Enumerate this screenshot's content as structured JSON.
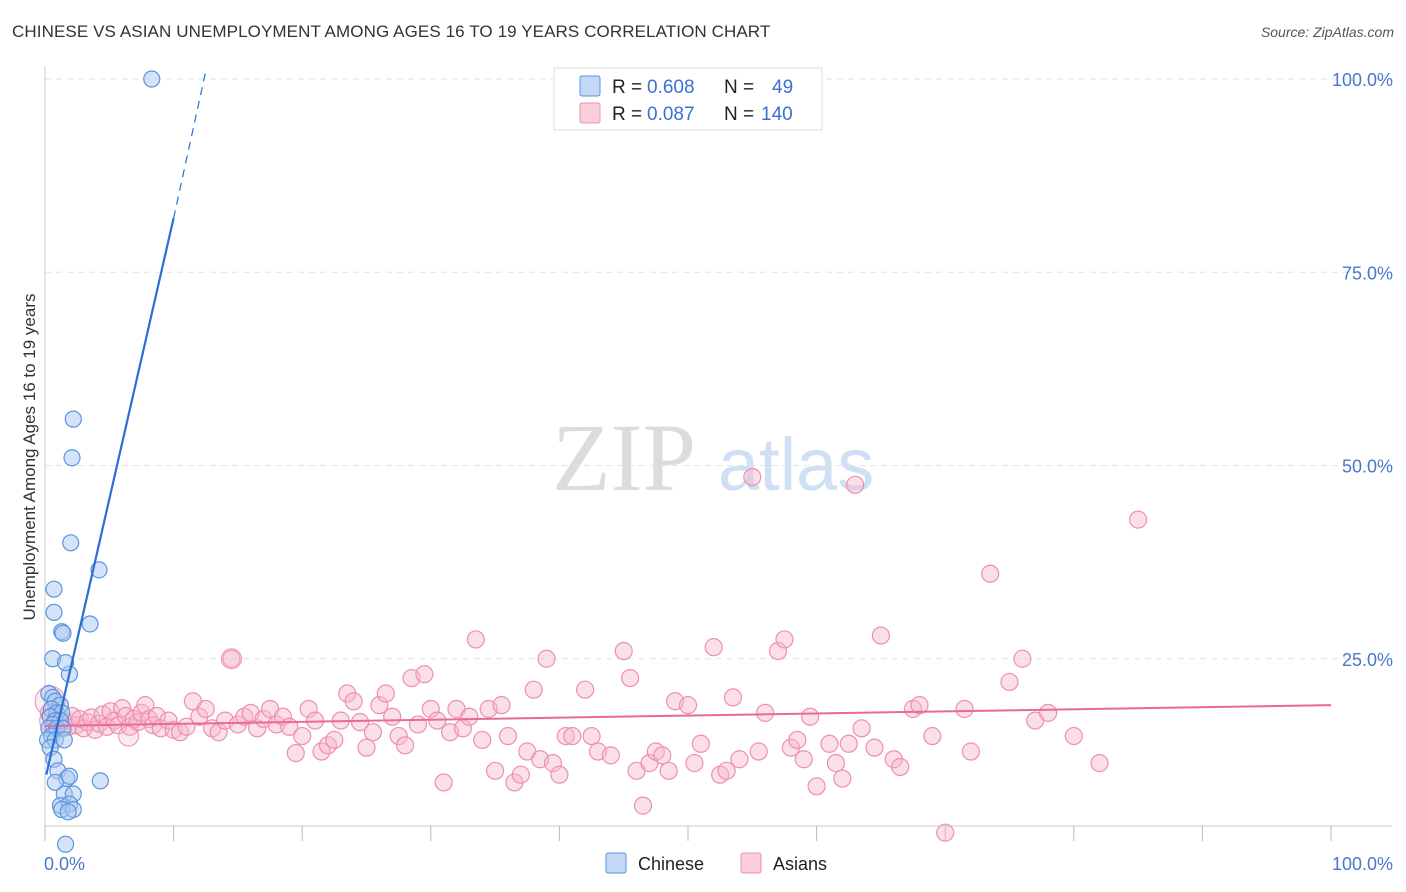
{
  "title": "CHINESE VS ASIAN UNEMPLOYMENT AMONG AGES 16 TO 19 YEARS CORRELATION CHART",
  "source": "Source: ZipAtlas.com",
  "watermark": {
    "zip": "ZIP",
    "atlas": "atlas"
  },
  "colors": {
    "chinese_fill": "#a9c8ef",
    "chinese_stroke": "#5d93e0",
    "chinese_line": "#2a6fd4",
    "asians_fill": "#f6b8cd",
    "asians_stroke": "#ee8fb0",
    "asians_line": "#e8699a",
    "tick_label": "#4a78c8",
    "grid": "#e3e3e3"
  },
  "legend": {
    "rows": [
      {
        "r_label": "R = ",
        "r_value": "0.608",
        "n_label": "N = ",
        "n_value": "49"
      },
      {
        "r_label": "R = ",
        "r_value": "0.087",
        "n_label": "N = ",
        "n_value": "140"
      }
    ]
  },
  "chart_data": {
    "type": "scatter",
    "title": "CHINESE VS ASIAN UNEMPLOYMENT AMONG AGES 16 TO 19 YEARS CORRELATION CHART",
    "xlabel": "",
    "ylabel": "Unemployment Among Ages 16 to 19 years",
    "xlim": [
      0,
      100
    ],
    "ylim": [
      0,
      102
    ],
    "x_tick_labels": [
      "0.0%",
      "100.0%"
    ],
    "y_ticks": [
      25,
      50,
      75,
      100
    ],
    "y_tick_labels": [
      "25.0%",
      "50.0%",
      "75.0%",
      "100.0%"
    ],
    "grid": true,
    "legend_position": "top-center",
    "series": [
      {
        "name": "Chinese",
        "r": 0.608,
        "n": 49,
        "trend": {
          "x0": 0.1,
          "y0": 10,
          "x1": 10,
          "y1": 82,
          "dash_to_x": 12.5,
          "dash_to_y": 101
        },
        "points": [
          [
            8.3,
            100
          ],
          [
            2.2,
            56
          ],
          [
            2.1,
            51
          ],
          [
            2.0,
            40
          ],
          [
            4.2,
            36.5
          ],
          [
            0.7,
            34
          ],
          [
            0.7,
            31
          ],
          [
            1.3,
            28.5
          ],
          [
            3.5,
            29.5
          ],
          [
            1.4,
            28.3
          ],
          [
            1.9,
            23
          ],
          [
            0.6,
            25
          ],
          [
            1.6,
            24.5
          ],
          [
            0.3,
            20.5
          ],
          [
            0.6,
            20
          ],
          [
            0.8,
            19.5
          ],
          [
            1.2,
            19
          ],
          [
            0.5,
            18.5
          ],
          [
            0.9,
            18
          ],
          [
            1.3,
            18
          ],
          [
            0.4,
            17.5
          ],
          [
            0.8,
            17
          ],
          [
            1.2,
            17
          ],
          [
            0.6,
            16.5
          ],
          [
            0.3,
            16
          ],
          [
            0.9,
            16
          ],
          [
            1.4,
            16
          ],
          [
            0.5,
            15
          ],
          [
            0.2,
            14.5
          ],
          [
            0.8,
            14.5
          ],
          [
            1.5,
            14.5
          ],
          [
            0.4,
            13.5
          ],
          [
            0.7,
            12
          ],
          [
            1.0,
            10.5
          ],
          [
            1.7,
            9.5
          ],
          [
            1.9,
            9.8
          ],
          [
            4.3,
            9.2
          ],
          [
            0.8,
            9
          ],
          [
            1.5,
            7.5
          ],
          [
            2.2,
            7.5
          ],
          [
            1.2,
            6
          ],
          [
            1.9,
            6.2
          ],
          [
            1.3,
            5.5
          ],
          [
            2.2,
            5.5
          ],
          [
            1.8,
            5.2
          ],
          [
            1.6,
            1
          ]
        ]
      },
      {
        "name": "Asians",
        "r": 0.087,
        "n": 140,
        "trend": {
          "x0": 0,
          "y0": 16.3,
          "x1": 100,
          "y1": 19
        },
        "points": [
          [
            0.3,
            18
          ],
          [
            0.6,
            16.5
          ],
          [
            0.9,
            17.5
          ],
          [
            1.2,
            16
          ],
          [
            1.5,
            17
          ],
          [
            1.8,
            16.2
          ],
          [
            2.1,
            17.6
          ],
          [
            2.4,
            16.4
          ],
          [
            2.7,
            17.2
          ],
          [
            3.0,
            16
          ],
          [
            3.3,
            16.8
          ],
          [
            3.6,
            17.4
          ],
          [
            3.9,
            15.8
          ],
          [
            4.2,
            16.6
          ],
          [
            4.5,
            17.8
          ],
          [
            4.8,
            16.2
          ],
          [
            5.1,
            18.2
          ],
          [
            5.4,
            17
          ],
          [
            5.7,
            16.4
          ],
          [
            6.0,
            18.6
          ],
          [
            6.3,
            17.6
          ],
          [
            6.6,
            16.2
          ],
          [
            6.9,
            17.2
          ],
          [
            7.2,
            16.8
          ],
          [
            7.5,
            18
          ],
          [
            7.8,
            19
          ],
          [
            8.1,
            17.2
          ],
          [
            8.4,
            16.4
          ],
          [
            8.7,
            17.6
          ],
          [
            9.0,
            16
          ],
          [
            9.6,
            17
          ],
          [
            10.0,
            15.8
          ],
          [
            10.5,
            15.5
          ],
          [
            11.0,
            16.2
          ],
          [
            11.5,
            19.5
          ],
          [
            12.0,
            17.5
          ],
          [
            12.5,
            18.5
          ],
          [
            13.0,
            16
          ],
          [
            13.5,
            15.5
          ],
          [
            14.0,
            17
          ],
          [
            14.5,
            25
          ],
          [
            15.0,
            16.5
          ],
          [
            15.5,
            17.5
          ],
          [
            16.0,
            18
          ],
          [
            16.5,
            16
          ],
          [
            17.0,
            17.2
          ],
          [
            17.5,
            18.5
          ],
          [
            18.0,
            16.5
          ],
          [
            18.5,
            17.5
          ],
          [
            19.0,
            16.2
          ],
          [
            19.5,
            12.8
          ],
          [
            20.0,
            15
          ],
          [
            20.5,
            18.5
          ],
          [
            21.0,
            17
          ],
          [
            21.5,
            13
          ],
          [
            22.0,
            13.8
          ],
          [
            22.5,
            14.5
          ],
          [
            23.0,
            17
          ],
          [
            23.5,
            20.5
          ],
          [
            24.0,
            19.5
          ],
          [
            24.5,
            16.8
          ],
          [
            25.0,
            13.5
          ],
          [
            25.5,
            15.5
          ],
          [
            26.0,
            19
          ],
          [
            26.5,
            20.5
          ],
          [
            27.0,
            17.5
          ],
          [
            27.5,
            15
          ],
          [
            28.0,
            13.8
          ],
          [
            28.5,
            22.5
          ],
          [
            29.0,
            16.5
          ],
          [
            29.5,
            23
          ],
          [
            30.0,
            18.5
          ],
          [
            30.5,
            17
          ],
          [
            31.0,
            9
          ],
          [
            31.5,
            15.5
          ],
          [
            32.0,
            18.5
          ],
          [
            32.5,
            16
          ],
          [
            33.0,
            17.5
          ],
          [
            33.5,
            27.5
          ],
          [
            34.0,
            14.5
          ],
          [
            34.5,
            18.5
          ],
          [
            35.0,
            10.5
          ],
          [
            35.5,
            19
          ],
          [
            36.0,
            15
          ],
          [
            36.5,
            9
          ],
          [
            37.0,
            10
          ],
          [
            37.5,
            13
          ],
          [
            38.0,
            21
          ],
          [
            38.5,
            12
          ],
          [
            39.0,
            25
          ],
          [
            39.5,
            11.5
          ],
          [
            40.0,
            10
          ],
          [
            40.5,
            15
          ],
          [
            41.0,
            15
          ],
          [
            42.0,
            21
          ],
          [
            42.5,
            15
          ],
          [
            43.0,
            13
          ],
          [
            44.0,
            12.5
          ],
          [
            45.0,
            26
          ],
          [
            45.5,
            22.5
          ],
          [
            46.0,
            10.5
          ],
          [
            46.5,
            6
          ],
          [
            47.0,
            11.5
          ],
          [
            47.5,
            13
          ],
          [
            48.0,
            12.5
          ],
          [
            48.5,
            10.5
          ],
          [
            49.0,
            19.5
          ],
          [
            50.0,
            19
          ],
          [
            50.5,
            11.5
          ],
          [
            51.0,
            14
          ],
          [
            52.0,
            26.5
          ],
          [
            52.5,
            10
          ],
          [
            53.0,
            10.5
          ],
          [
            53.5,
            20
          ],
          [
            54.0,
            12
          ],
          [
            55.0,
            48.5
          ],
          [
            55.5,
            13
          ],
          [
            56.0,
            18
          ],
          [
            57.0,
            26
          ],
          [
            57.5,
            27.5
          ],
          [
            58.0,
            13.5
          ],
          [
            58.5,
            14.5
          ],
          [
            59.0,
            12
          ],
          [
            59.5,
            17.5
          ],
          [
            60.0,
            8.5
          ],
          [
            61.0,
            14
          ],
          [
            61.5,
            11.5
          ],
          [
            62.0,
            9.5
          ],
          [
            62.5,
            14
          ],
          [
            63.0,
            47.5
          ],
          [
            63.5,
            16
          ],
          [
            64.5,
            13.5
          ],
          [
            65.0,
            28
          ],
          [
            66.0,
            12
          ],
          [
            66.5,
            11
          ],
          [
            67.5,
            18.5
          ],
          [
            68.0,
            19
          ],
          [
            69.0,
            15
          ],
          [
            70.0,
            2.5
          ],
          [
            71.5,
            18.5
          ],
          [
            72.0,
            13
          ],
          [
            73.5,
            36
          ],
          [
            75.0,
            22
          ],
          [
            76.0,
            25
          ],
          [
            77.0,
            17
          ],
          [
            78.0,
            18
          ],
          [
            80.0,
            15
          ],
          [
            82.0,
            11.5
          ],
          [
            85.0,
            43
          ]
        ]
      }
    ]
  },
  "bottom_legend": {
    "items": [
      "Chinese",
      "Asians"
    ]
  }
}
